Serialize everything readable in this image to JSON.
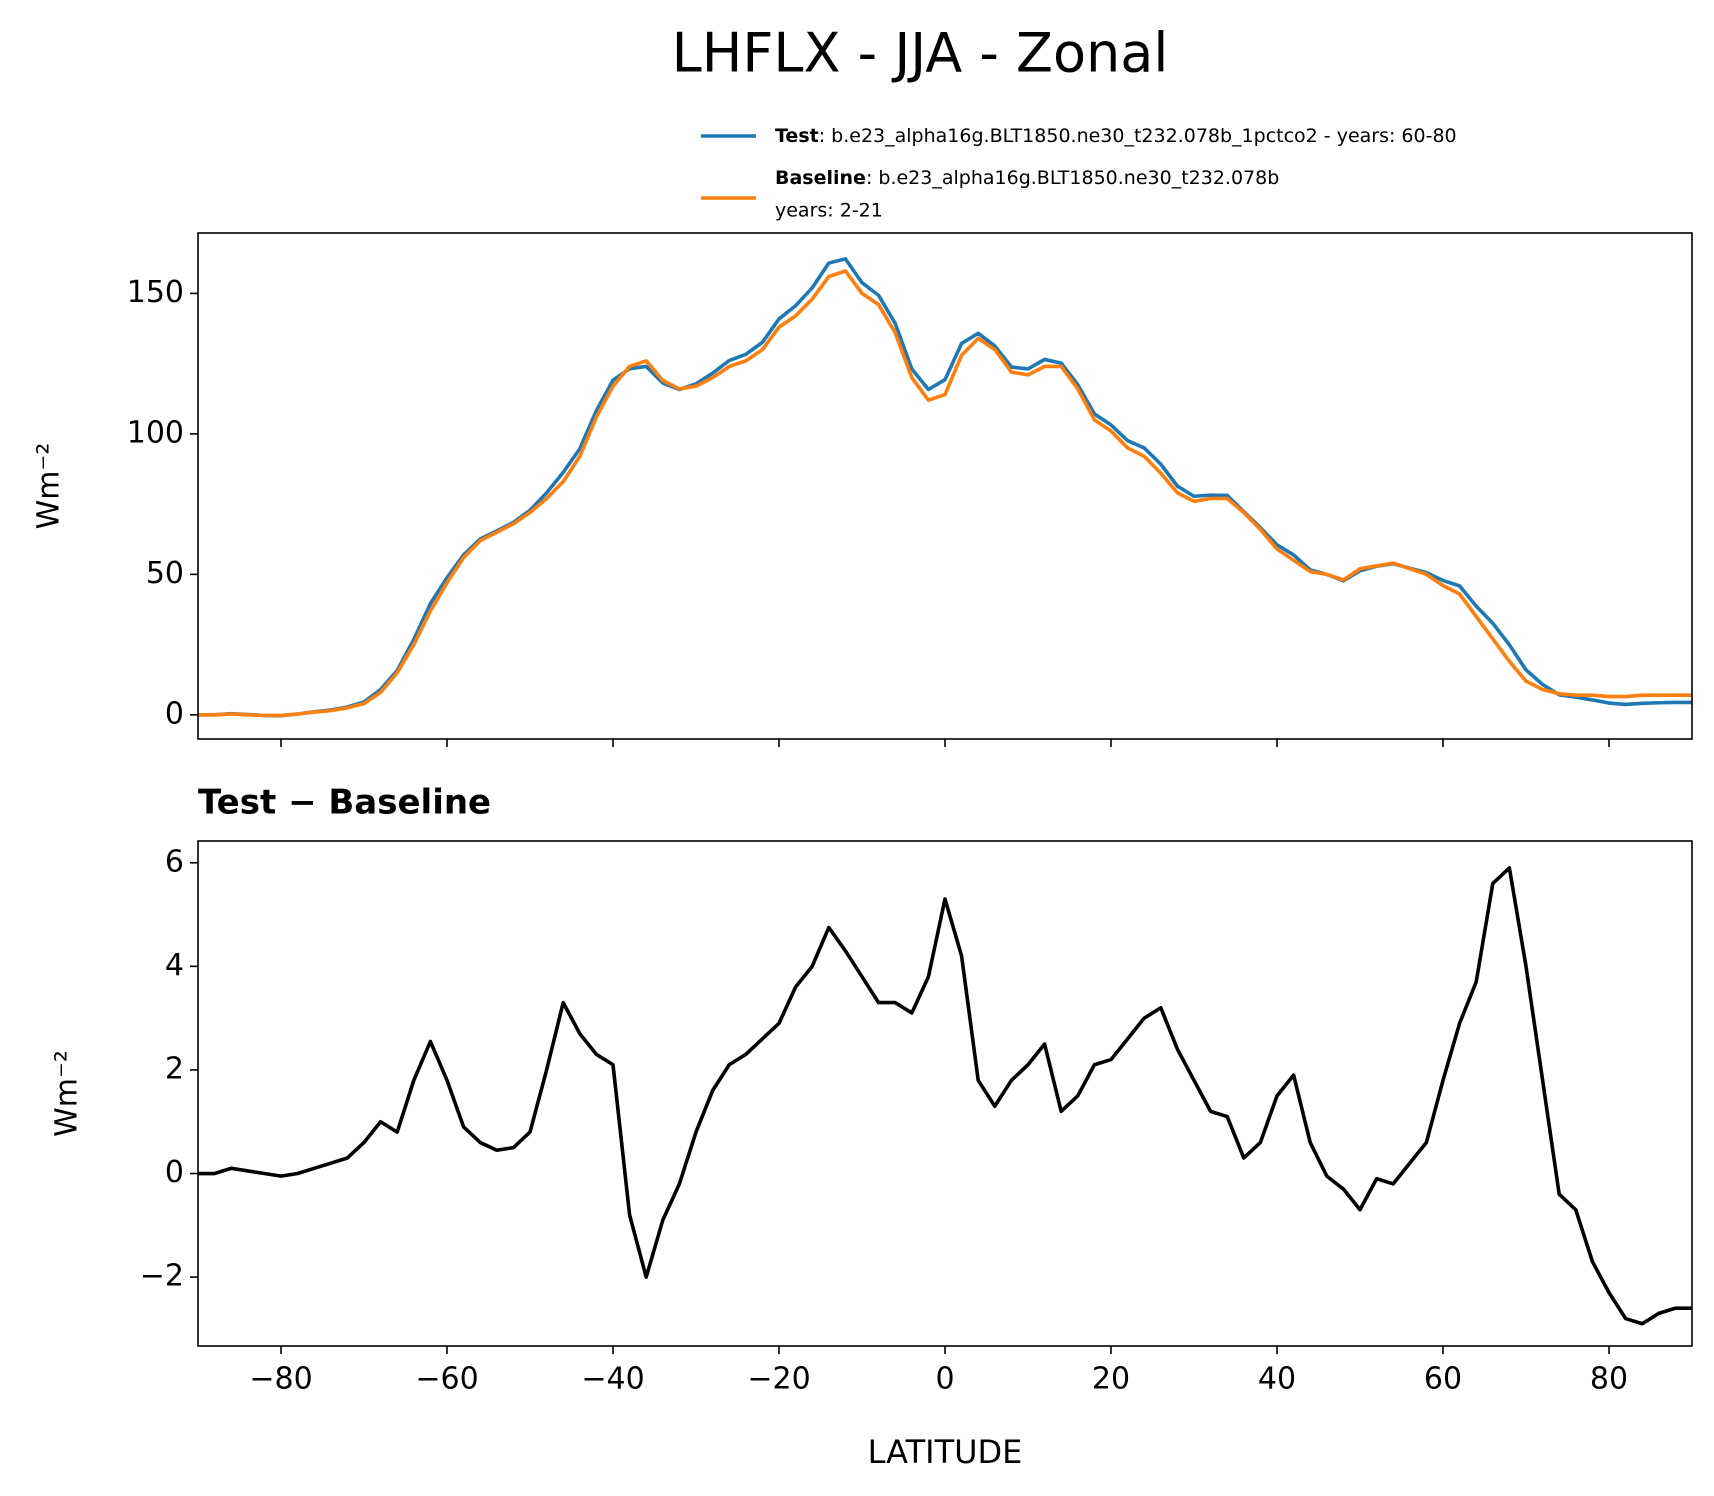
{
  "chart_data": [
    {
      "type": "line",
      "title": "LHFLX - JJA - Zonal",
      "ylabel": "Wm⁻²",
      "x": [
        -90,
        -88,
        -86,
        -84,
        -82,
        -80,
        -78,
        -76,
        -74,
        -72,
        -70,
        -68,
        -66,
        -64,
        -62,
        -60,
        -58,
        -56,
        -54,
        -52,
        -50,
        -48,
        -46,
        -44,
        -42,
        -40,
        -38,
        -36,
        -34,
        -32,
        -30,
        -28,
        -26,
        -24,
        -22,
        -20,
        -18,
        -16,
        -14,
        -12,
        -10,
        -8,
        -6,
        -4,
        -2,
        0,
        2,
        4,
        6,
        8,
        10,
        12,
        14,
        16,
        18,
        20,
        22,
        24,
        26,
        28,
        30,
        32,
        34,
        36,
        38,
        40,
        42,
        44,
        46,
        48,
        50,
        52,
        54,
        56,
        58,
        60,
        62,
        64,
        66,
        68,
        70,
        72,
        74,
        76,
        78,
        80,
        82,
        84,
        86,
        88,
        90
      ],
      "series": [
        {
          "name": "Test",
          "label": [
            ": b.e23_alpha16g.BLT1850.ne30_t232.078b_1pctco2 - years: 60-80"
          ],
          "color": "#1f77b4",
          "values": [
            0,
            0,
            0.4,
            0.1,
            -0.2,
            -0.3,
            0.3,
            1.1,
            1.7,
            2.8,
            4.6,
            9,
            15.8,
            26.8,
            39.6,
            48.8,
            56.9,
            62.6,
            65.5,
            68.5,
            72.8,
            79,
            86.3,
            94.7,
            108.3,
            119.1,
            123.2,
            124,
            118.1,
            115.8,
            117.8,
            121.6,
            126.1,
            128.3,
            132.6,
            140.9,
            145.6,
            152,
            160.8,
            162.3,
            153.8,
            149.3,
            139.3,
            123.1,
            115.8,
            119.3,
            132.2,
            135.8,
            131.3,
            123.8,
            123.1,
            126.5,
            125.2,
            117.5,
            107.1,
            103.2,
            97.6,
            95,
            89.2,
            81.4,
            77.8,
            78.2,
            78.1,
            72.3,
            66.6,
            60.5,
            56.9,
            51.6,
            50,
            47.7,
            51.3,
            52.9,
            53.8,
            52.2,
            50.6,
            47.8,
            45.9,
            38.7,
            32.6,
            24.9,
            16,
            10.8,
            7.1,
            6.3,
            5.3,
            4.2,
            3.7,
            4.1,
            4.3,
            4.4,
            4.4
          ]
        },
        {
          "name": "Baseline",
          "label": [
            ": b.e23_alpha16g.BLT1850.ne30_t232.078b",
            "years: 2-21"
          ],
          "color": "#ff7f0e",
          "values": [
            0,
            0,
            0.3,
            0,
            -0.2,
            -0.2,
            0.3,
            1,
            1.5,
            2.5,
            4,
            8,
            15,
            25,
            37,
            47,
            56,
            62,
            65,
            68,
            72,
            77,
            83,
            92,
            106,
            117,
            124,
            126,
            119,
            116,
            117,
            120,
            124,
            126,
            130,
            138,
            142,
            148,
            156,
            158,
            150,
            146,
            136,
            120,
            112,
            114,
            128,
            134,
            130,
            122,
            121,
            124,
            124,
            116,
            105,
            101,
            95,
            92,
            86,
            79,
            76,
            77,
            77,
            72,
            66,
            59,
            55,
            51,
            50,
            48,
            52,
            53,
            54,
            52,
            50,
            46,
            43,
            35,
            27,
            19,
            12,
            9,
            7.5,
            7,
            7,
            6.5,
            6.5,
            7,
            7,
            7,
            7
          ]
        }
      ],
      "xlim": [
        -90,
        90
      ],
      "xticks": [
        -80,
        -60,
        -40,
        -20,
        0,
        20,
        40,
        60,
        80
      ],
      "ylim": [
        -8.6,
        171.5
      ],
      "yticks": [
        0,
        50,
        100,
        150
      ]
    },
    {
      "type": "line",
      "title": "Test − Baseline",
      "ylabel": "Wm⁻²",
      "xlabel": "LATITUDE",
      "x": [
        -90,
        -88,
        -86,
        -84,
        -82,
        -80,
        -78,
        -76,
        -74,
        -72,
        -70,
        -68,
        -66,
        -64,
        -62,
        -60,
        -58,
        -56,
        -54,
        -52,
        -50,
        -48,
        -46,
        -44,
        -42,
        -40,
        -38,
        -36,
        -34,
        -32,
        -30,
        -28,
        -26,
        -24,
        -22,
        -20,
        -18,
        -16,
        -14,
        -12,
        -10,
        -8,
        -6,
        -4,
        -2,
        0,
        2,
        4,
        6,
        8,
        10,
        12,
        14,
        16,
        18,
        20,
        22,
        24,
        26,
        28,
        30,
        32,
        34,
        36,
        38,
        40,
        42,
        44,
        46,
        48,
        50,
        52,
        54,
        56,
        58,
        60,
        62,
        64,
        66,
        68,
        70,
        72,
        74,
        76,
        78,
        80,
        82,
        84,
        86,
        88,
        90
      ],
      "series": [
        {
          "color": "#000000",
          "values": [
            0,
            0,
            0.1,
            0.05,
            0,
            -0.05,
            0,
            0.1,
            0.2,
            0.3,
            0.6,
            1,
            0.8,
            1.8,
            2.55,
            1.8,
            0.9,
            0.6,
            0.45,
            0.5,
            0.8,
            2,
            3.3,
            2.7,
            2.3,
            2.1,
            -0.8,
            -2,
            -0.9,
            -0.2,
            0.8,
            1.6,
            2.1,
            2.3,
            2.6,
            2.9,
            3.6,
            4,
            4.75,
            4.3,
            3.8,
            3.3,
            3.3,
            3.1,
            3.8,
            5.3,
            4.2,
            1.8,
            1.3,
            1.8,
            2.1,
            2.5,
            1.2,
            1.5,
            2.1,
            2.2,
            2.6,
            3,
            3.2,
            2.4,
            1.8,
            1.2,
            1.1,
            0.3,
            0.6,
            1.5,
            1.9,
            0.6,
            -0.05,
            -0.3,
            -0.7,
            -0.1,
            -0.2,
            0.2,
            0.6,
            1.8,
            2.9,
            3.7,
            5.6,
            5.9,
            4,
            1.8,
            -0.4,
            -0.7,
            -1.7,
            -2.3,
            -2.8,
            -2.9,
            -2.7,
            -2.6,
            -2.6
          ]
        }
      ],
      "xlim": [
        -90,
        90
      ],
      "xticks": [
        {
          "value": -80,
          "label": "−80"
        },
        {
          "value": -60,
          "label": "−60"
        },
        {
          "value": -40,
          "label": "−40"
        },
        {
          "value": -20,
          "label": "−20"
        },
        0,
        20,
        40,
        60,
        80
      ],
      "ylim": [
        -3.33,
        6.42
      ],
      "yticks": [
        {
          "value": -2,
          "label": "−2"
        },
        0,
        2,
        4,
        6
      ]
    }
  ]
}
